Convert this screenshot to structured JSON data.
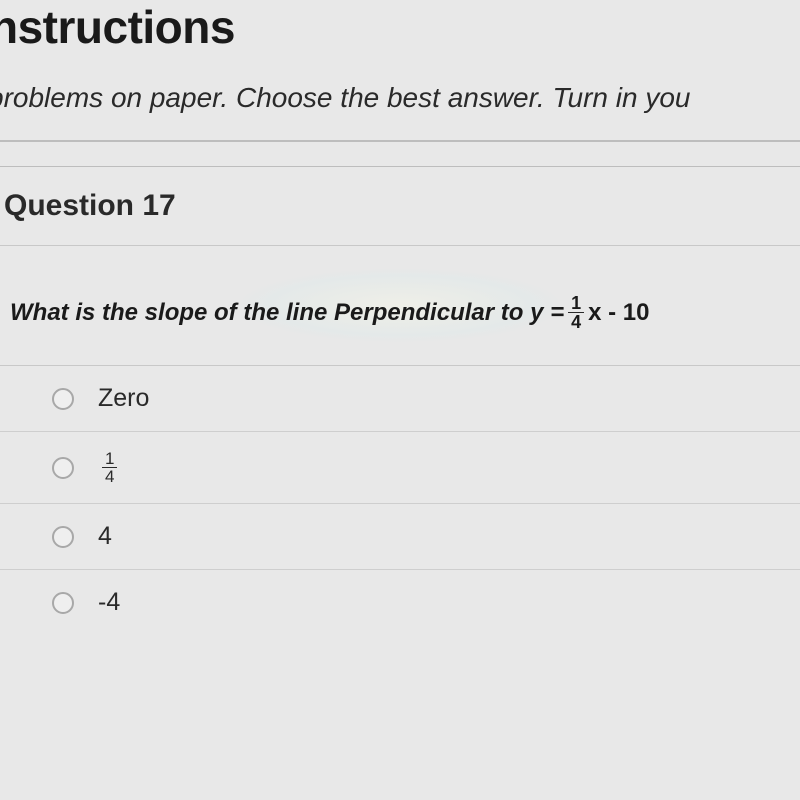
{
  "colors": {
    "background": "#e8e8e8",
    "text": "#2a2a2a",
    "heading": "#1a1a1a",
    "divider": "#bdbdbd",
    "row_divider": "#cecece",
    "radio_border": "#a8a8a8"
  },
  "typography": {
    "heading_fontsize": 46,
    "subtext_fontsize": 28,
    "question_title_fontsize": 30,
    "prompt_fontsize": 24,
    "option_fontsize": 25
  },
  "header": {
    "title_partial": "nstructions",
    "subtitle_partial": "problems on paper. Choose the best answer. Turn in you"
  },
  "question": {
    "number": "17",
    "title": "Question 17",
    "prompt_prefix": "What is the slope of the line Perpendicular to y = ",
    "equation": {
      "fraction_num": "1",
      "fraction_den": "4",
      "after_fraction": "x - 10"
    },
    "options": [
      {
        "type": "text",
        "label": "Zero",
        "selected": false
      },
      {
        "type": "fraction",
        "num": "1",
        "den": "4",
        "selected": false
      },
      {
        "type": "text",
        "label": "4",
        "selected": false
      },
      {
        "type": "text",
        "label": "-4",
        "selected": false
      }
    ]
  }
}
